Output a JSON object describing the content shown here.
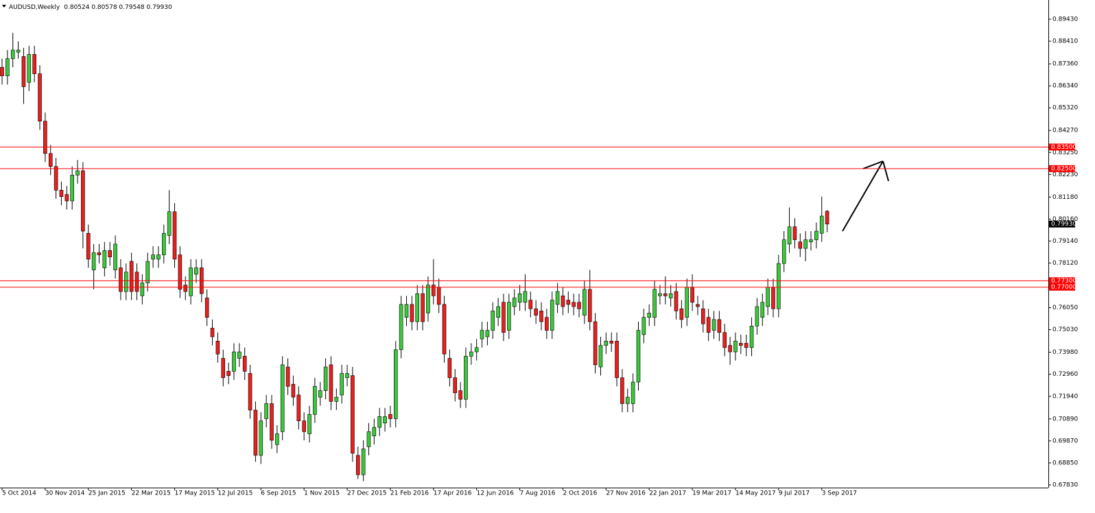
{
  "chart_data": {
    "type": "candlestick",
    "title": "AUDUSD,Weekly",
    "ohlc_text": "0.80524 0.80578 0.79548 0.79930",
    "categories": [
      "5 Oct 2014",
      null,
      null,
      null,
      null,
      null,
      null,
      null,
      "30 Nov 2014",
      null,
      null,
      null,
      null,
      null,
      null,
      null,
      "25 Jan 2015",
      null,
      null,
      null,
      null,
      null,
      null,
      null,
      "22 Mar 2015",
      null,
      null,
      null,
      null,
      null,
      null,
      null,
      "17 May 2015",
      null,
      null,
      null,
      null,
      null,
      null,
      null,
      "12 Jul 2015",
      null,
      null,
      null,
      null,
      null,
      null,
      null,
      "6 Sep 2015",
      null,
      null,
      null,
      null,
      null,
      null,
      null,
      "1 Nov 2015",
      null,
      null,
      null,
      null,
      null,
      null,
      null,
      "27 Dec 2015",
      null,
      null,
      null,
      null,
      null,
      null,
      null,
      "21 Feb 2016",
      null,
      null,
      null,
      null,
      null,
      null,
      null,
      "17 Apr 2016",
      null,
      null,
      null,
      null,
      null,
      null,
      null,
      "12 Jun 2016",
      null,
      null,
      null,
      null,
      null,
      null,
      null,
      "7 Aug 2016",
      null,
      null,
      null,
      null,
      null,
      null,
      null,
      "2 Oct 2016",
      null,
      null,
      null,
      null,
      null,
      null,
      null,
      "27 Nov 2016",
      null,
      null,
      null,
      null,
      null,
      null,
      null,
      "22 Jan 2017",
      null,
      null,
      null,
      null,
      null,
      null,
      null,
      "19 Mar 2017",
      null,
      null,
      null,
      null,
      null,
      null,
      null,
      "14 May 2017",
      null,
      null,
      null,
      null,
      null,
      null,
      null,
      "9 Jul 2017",
      null,
      null,
      null,
      null,
      null,
      null,
      null,
      "3 Sep 2017",
      null
    ],
    "open": [
      0.872,
      0.868,
      0.876,
      0.879,
      0.877,
      0.865,
      0.878,
      0.869,
      0.847,
      0.832,
      0.826,
      0.815,
      0.813,
      0.81,
      0.822,
      0.824,
      0.795,
      0.778,
      0.786,
      0.779,
      0.787,
      0.778,
      0.779,
      0.768,
      0.782,
      0.777,
      0.766,
      0.772,
      0.783,
      0.783,
      0.785,
      0.794,
      0.805,
      0.785,
      0.771,
      0.766,
      0.776,
      0.779,
      0.765,
      0.751,
      0.745,
      0.737,
      0.731,
      0.731,
      0.737,
      0.738,
      0.73,
      0.713,
      0.692,
      0.709,
      0.716,
      0.697,
      0.703,
      0.733,
      0.725,
      0.72,
      0.708,
      0.702,
      0.711,
      0.719,
      0.722,
      0.734,
      0.717,
      0.72,
      0.728,
      0.729,
      0.692,
      0.683,
      0.696,
      0.701,
      0.705,
      0.707,
      0.711,
      0.709,
      0.741,
      0.756,
      0.762,
      0.754,
      0.767,
      0.758,
      0.771,
      0.77,
      0.762,
      0.737,
      0.728,
      0.722,
      0.718,
      0.738,
      0.74,
      0.746,
      0.747,
      0.75,
      0.756,
      0.763,
      0.75,
      0.761,
      0.763,
      0.763,
      0.764,
      0.76,
      0.759,
      0.756,
      0.75,
      0.762,
      0.766,
      0.764,
      0.763,
      0.763,
      0.757,
      0.769,
      0.754,
      0.733,
      0.743,
      0.745,
      0.745,
      0.728,
      0.716,
      0.716,
      0.726,
      0.748,
      0.756,
      0.756,
      0.766,
      0.767,
      0.765,
      0.768,
      0.76,
      0.756,
      0.77,
      0.762,
      0.76,
      0.756,
      0.75,
      0.755,
      0.749,
      0.743,
      0.74,
      0.744,
      0.744,
      0.742,
      0.752,
      0.756,
      0.761,
      0.77,
      0.76,
      0.781,
      0.79,
      0.798,
      0.791,
      0.788,
      0.791,
      0.792,
      0.795,
      0.80524
    ],
    "high": [
      0.876,
      0.88,
      0.888,
      0.884,
      0.881,
      0.882,
      0.882,
      0.873,
      0.851,
      0.836,
      0.83,
      0.819,
      0.817,
      0.826,
      0.829,
      0.828,
      0.799,
      0.79,
      0.79,
      0.791,
      0.791,
      0.794,
      0.783,
      0.781,
      0.786,
      0.781,
      0.776,
      0.786,
      0.789,
      0.789,
      0.799,
      0.815,
      0.809,
      0.789,
      0.775,
      0.783,
      0.783,
      0.783,
      0.769,
      0.755,
      0.749,
      0.741,
      0.735,
      0.744,
      0.744,
      0.742,
      0.734,
      0.717,
      0.712,
      0.72,
      0.72,
      0.706,
      0.738,
      0.737,
      0.729,
      0.724,
      0.712,
      0.715,
      0.728,
      0.726,
      0.737,
      0.738,
      0.723,
      0.734,
      0.734,
      0.733,
      0.696,
      0.699,
      0.707,
      0.709,
      0.714,
      0.714,
      0.715,
      0.745,
      0.766,
      0.766,
      0.766,
      0.771,
      0.771,
      0.775,
      0.783,
      0.774,
      0.766,
      0.741,
      0.732,
      0.726,
      0.742,
      0.744,
      0.746,
      0.754,
      0.754,
      0.763,
      0.765,
      0.767,
      0.767,
      0.769,
      0.771,
      0.776,
      0.768,
      0.764,
      0.763,
      0.76,
      0.768,
      0.772,
      0.77,
      0.768,
      0.767,
      0.767,
      0.773,
      0.778,
      0.758,
      0.747,
      0.749,
      0.749,
      0.749,
      0.732,
      0.723,
      0.73,
      0.754,
      0.76,
      0.762,
      0.773,
      0.771,
      0.775,
      0.771,
      0.772,
      0.764,
      0.774,
      0.776,
      0.766,
      0.764,
      0.76,
      0.759,
      0.759,
      0.753,
      0.747,
      0.749,
      0.748,
      0.748,
      0.756,
      0.765,
      0.767,
      0.774,
      0.774,
      0.785,
      0.796,
      0.807,
      0.802,
      0.795,
      0.796,
      0.796,
      0.8,
      0.812,
      0.80578
    ],
    "low": [
      0.864,
      0.864,
      0.872,
      0.876,
      0.855,
      0.861,
      0.865,
      0.843,
      0.828,
      0.822,
      0.811,
      0.808,
      0.806,
      0.806,
      0.818,
      0.788,
      0.779,
      0.769,
      0.781,
      0.775,
      0.78,
      0.774,
      0.764,
      0.764,
      0.764,
      0.764,
      0.762,
      0.768,
      0.779,
      0.779,
      0.781,
      0.79,
      0.779,
      0.765,
      0.764,
      0.762,
      0.772,
      0.763,
      0.752,
      0.743,
      0.735,
      0.724,
      0.725,
      0.727,
      0.733,
      0.727,
      0.709,
      0.689,
      0.688,
      0.705,
      0.695,
      0.693,
      0.699,
      0.72,
      0.715,
      0.704,
      0.699,
      0.698,
      0.707,
      0.715,
      0.718,
      0.713,
      0.713,
      0.716,
      0.724,
      0.689,
      0.681,
      0.68,
      0.692,
      0.697,
      0.701,
      0.703,
      0.705,
      0.705,
      0.737,
      0.752,
      0.75,
      0.75,
      0.75,
      0.754,
      0.762,
      0.758,
      0.735,
      0.724,
      0.717,
      0.714,
      0.714,
      0.734,
      0.736,
      0.742,
      0.743,
      0.746,
      0.752,
      0.745,
      0.746,
      0.757,
      0.759,
      0.759,
      0.756,
      0.753,
      0.75,
      0.746,
      0.746,
      0.758,
      0.757,
      0.758,
      0.757,
      0.756,
      0.753,
      0.75,
      0.73,
      0.729,
      0.739,
      0.74,
      0.724,
      0.712,
      0.712,
      0.712,
      0.722,
      0.744,
      0.752,
      0.752,
      0.762,
      0.762,
      0.761,
      0.755,
      0.751,
      0.752,
      0.759,
      0.757,
      0.749,
      0.745,
      0.746,
      0.745,
      0.738,
      0.734,
      0.736,
      0.739,
      0.738,
      0.738,
      0.748,
      0.752,
      0.757,
      0.756,
      0.756,
      0.777,
      0.786,
      0.788,
      0.784,
      0.782,
      0.787,
      0.788,
      0.791,
      0.79548
    ],
    "close": [
      0.868,
      0.876,
      0.88,
      0.88,
      0.863,
      0.878,
      0.869,
      0.847,
      0.832,
      0.826,
      0.815,
      0.812,
      0.81,
      0.822,
      0.824,
      0.796,
      0.783,
      0.786,
      0.785,
      0.787,
      0.784,
      0.79,
      0.768,
      0.777,
      0.768,
      0.768,
      0.772,
      0.782,
      0.785,
      0.785,
      0.795,
      0.805,
      0.783,
      0.769,
      0.768,
      0.779,
      0.779,
      0.767,
      0.756,
      0.747,
      0.739,
      0.728,
      0.729,
      0.74,
      0.74,
      0.731,
      0.713,
      0.692,
      0.708,
      0.716,
      0.699,
      0.702,
      0.734,
      0.724,
      0.719,
      0.708,
      0.703,
      0.711,
      0.724,
      0.722,
      0.733,
      0.717,
      0.719,
      0.73,
      0.73,
      0.693,
      0.683,
      0.695,
      0.703,
      0.705,
      0.71,
      0.71,
      0.709,
      0.741,
      0.762,
      0.762,
      0.754,
      0.767,
      0.754,
      0.771,
      0.766,
      0.762,
      0.739,
      0.728,
      0.721,
      0.718,
      0.738,
      0.74,
      0.742,
      0.75,
      0.75,
      0.759,
      0.761,
      0.749,
      0.763,
      0.765,
      0.767,
      0.768,
      0.76,
      0.757,
      0.754,
      0.75,
      0.764,
      0.768,
      0.761,
      0.762,
      0.761,
      0.76,
      0.769,
      0.754,
      0.734,
      0.743,
      0.745,
      0.744,
      0.728,
      0.716,
      0.719,
      0.726,
      0.75,
      0.756,
      0.758,
      0.769,
      0.767,
      0.766,
      0.767,
      0.759,
      0.755,
      0.77,
      0.763,
      0.761,
      0.753,
      0.749,
      0.755,
      0.749,
      0.742,
      0.74,
      0.745,
      0.743,
      0.742,
      0.752,
      0.761,
      0.763,
      0.77,
      0.76,
      0.781,
      0.792,
      0.798,
      0.792,
      0.788,
      0.792,
      0.792,
      0.796,
      0.803,
      0.7993
    ],
    "up_color": "#3cc83c",
    "down_color": "#e8201e",
    "ylim": [
      0.67703,
      0.90321
    ],
    "yticks": [
      {
        "value": 0.8943,
        "label": "0.89430"
      },
      {
        "value": 0.8841,
        "label": "0.88410"
      },
      {
        "value": 0.8736,
        "label": "0.87360"
      },
      {
        "value": 0.8634,
        "label": "0.86340"
      },
      {
        "value": 0.8532,
        "label": "0.85320"
      },
      {
        "value": 0.8427,
        "label": "0.84270"
      },
      {
        "value": 0.8325,
        "label": "0.83250"
      },
      {
        "value": 0.8223,
        "label": "0.82230"
      },
      {
        "value": 0.8118,
        "label": "0.81180"
      },
      {
        "value": 0.8016,
        "label": "0.80160"
      },
      {
        "value": 0.7914,
        "label": "0.79140"
      },
      {
        "value": 0.7812,
        "label": "0.78120"
      },
      {
        "value": 0.7605,
        "label": "0.76050"
      },
      {
        "value": 0.7503,
        "label": "0.75030"
      },
      {
        "value": 0.7398,
        "label": "0.73980"
      },
      {
        "value": 0.7296,
        "label": "0.72960"
      },
      {
        "value": 0.7194,
        "label": "0.71940"
      },
      {
        "value": 0.7089,
        "label": "0.70890"
      },
      {
        "value": 0.6987,
        "label": "0.69870"
      },
      {
        "value": 0.6885,
        "label": "0.68850"
      },
      {
        "value": 0.6783,
        "label": "0.67830"
      }
    ],
    "grid": false,
    "levels": [
      {
        "value": 0.835,
        "label": "0.83500"
      },
      {
        "value": 0.825,
        "label": "0.82500"
      },
      {
        "value": 0.773,
        "label": "0.77300"
      },
      {
        "value": 0.77,
        "label": "0.77000"
      }
    ],
    "level_color": "#ff0000",
    "current_price": {
      "value": 0.7993,
      "label": "0.79930"
    }
  }
}
